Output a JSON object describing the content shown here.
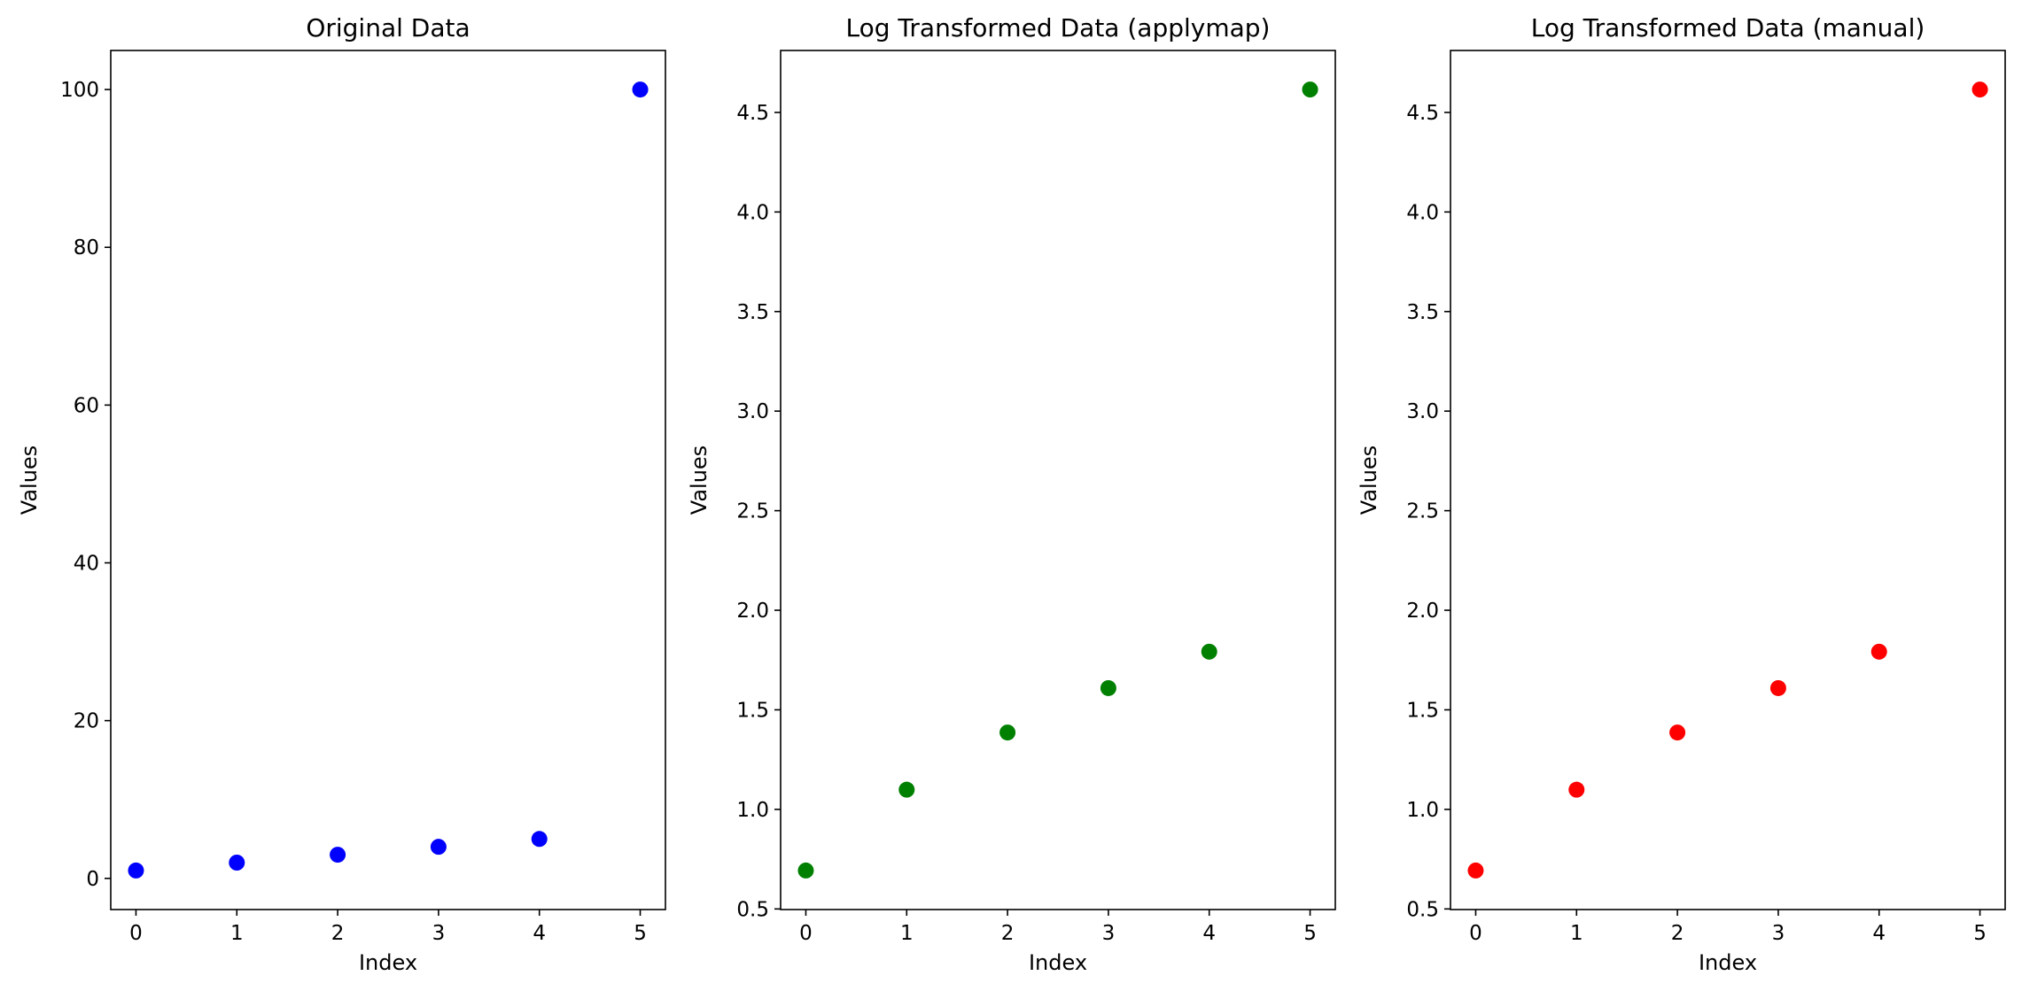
{
  "chart_data": [
    {
      "type": "scatter",
      "title": "Original Data",
      "xlabel": "Index",
      "ylabel": "Values",
      "x": [
        0,
        1,
        2,
        3,
        4,
        5
      ],
      "y": [
        1,
        2,
        3,
        4,
        5,
        100
      ],
      "color": "#0000ff",
      "xlim": [
        -0.25,
        5.25
      ],
      "ylim": [
        -3.95,
        104.95
      ],
      "xticks": [
        0,
        1,
        2,
        3,
        4,
        5
      ],
      "yticks": [
        0,
        20,
        40,
        60,
        80,
        100
      ],
      "grid": false
    },
    {
      "type": "scatter",
      "title": "Log Transformed Data (applymap)",
      "xlabel": "Index",
      "ylabel": "Values",
      "x": [
        0,
        1,
        2,
        3,
        4,
        5
      ],
      "y": [
        0.693,
        1.099,
        1.386,
        1.609,
        1.792,
        4.615
      ],
      "color": "#008000",
      "xlim": [
        -0.25,
        5.25
      ],
      "ylim": [
        0.497,
        4.811
      ],
      "xticks": [
        0,
        1,
        2,
        3,
        4,
        5
      ],
      "yticks": [
        0.5,
        1.0,
        1.5,
        2.0,
        2.5,
        3.0,
        3.5,
        4.0,
        4.5
      ],
      "grid": false
    },
    {
      "type": "scatter",
      "title": "Log Transformed Data (manual)",
      "xlabel": "Index",
      "ylabel": "Values",
      "x": [
        0,
        1,
        2,
        3,
        4,
        5
      ],
      "y": [
        0.693,
        1.099,
        1.386,
        1.609,
        1.792,
        4.615
      ],
      "color": "#ff0000",
      "xlim": [
        -0.25,
        5.25
      ],
      "ylim": [
        0.497,
        4.811
      ],
      "xticks": [
        0,
        1,
        2,
        3,
        4,
        5
      ],
      "yticks": [
        0.5,
        1.0,
        1.5,
        2.0,
        2.5,
        3.0,
        3.5,
        4.0,
        4.5
      ],
      "grid": false
    }
  ]
}
